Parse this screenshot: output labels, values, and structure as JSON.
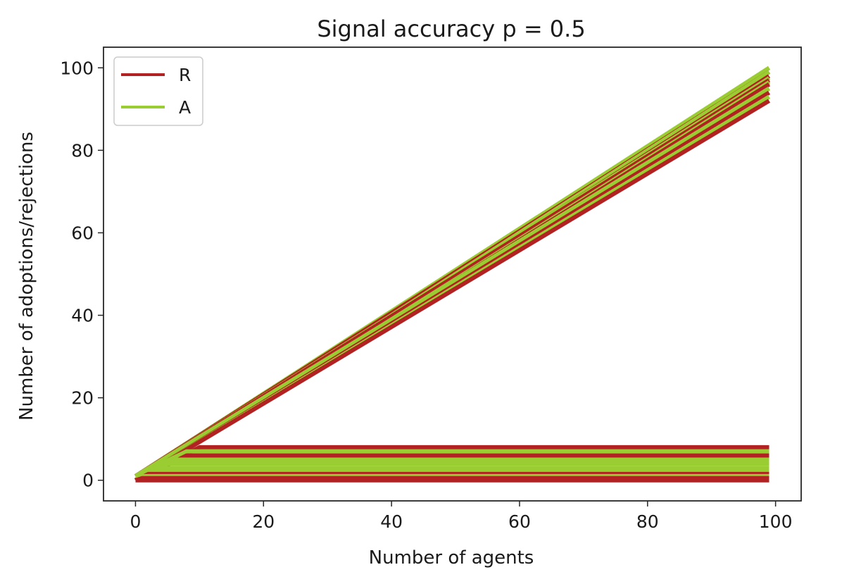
{
  "chart_data": {
    "type": "line",
    "title": "Signal accuracy p =  0.5",
    "xlabel": "Number of agents",
    "ylabel": "Number of adoptions/rejections",
    "xlim": [
      -5,
      104
    ],
    "ylim": [
      -5,
      105
    ],
    "xticks": [
      0,
      20,
      40,
      60,
      80,
      100
    ],
    "yticks": [
      0,
      20,
      40,
      60,
      80,
      100
    ],
    "grid": false,
    "legend_position": "top-left",
    "series": [
      {
        "name": "R",
        "color": "#b22222"
      },
      {
        "name": "A",
        "color": "#9acd32"
      }
    ],
    "lines": [
      {
        "series": "A",
        "x": [
          0,
          99
        ],
        "y": [
          1,
          100
        ]
      },
      {
        "series": "R",
        "x": [
          0,
          99
        ],
        "y": [
          1,
          99
        ]
      },
      {
        "series": "A",
        "x": [
          0,
          99
        ],
        "y": [
          0,
          99
        ]
      },
      {
        "series": "R",
        "x": [
          0,
          99
        ],
        "y": [
          0,
          98
        ]
      },
      {
        "series": "A",
        "x": [
          0,
          99
        ],
        "y": [
          1,
          97.5
        ]
      },
      {
        "series": "R",
        "x": [
          0,
          99
        ],
        "y": [
          1,
          97
        ]
      },
      {
        "series": "A",
        "x": [
          0,
          99
        ],
        "y": [
          0,
          96.5
        ]
      },
      {
        "series": "R",
        "x": [
          0,
          99
        ],
        "y": [
          0,
          96
        ]
      },
      {
        "series": "A",
        "x": [
          0,
          99
        ],
        "y": [
          1,
          95
        ]
      },
      {
        "series": "R",
        "x": [
          0,
          99
        ],
        "y": [
          0,
          94
        ]
      },
      {
        "series": "A",
        "x": [
          0,
          99
        ],
        "y": [
          0,
          93
        ]
      },
      {
        "series": "R",
        "x": [
          0,
          99
        ],
        "y": [
          0,
          92
        ]
      },
      {
        "series": "R",
        "x": [
          0,
          10,
          18,
          24,
          99
        ],
        "y": [
          0,
          8,
          8,
          8,
          8
        ]
      },
      {
        "series": "A",
        "x": [
          0,
          8,
          14,
          99
        ],
        "y": [
          1,
          7,
          7,
          7
        ]
      },
      {
        "series": "R",
        "x": [
          0,
          8,
          12,
          99
        ],
        "y": [
          0,
          6,
          6,
          6
        ]
      },
      {
        "series": "A",
        "x": [
          0,
          6,
          99
        ],
        "y": [
          0,
          5,
          5
        ]
      },
      {
        "series": "A",
        "x": [
          0,
          5,
          99
        ],
        "y": [
          1,
          4,
          4
        ]
      },
      {
        "series": "A",
        "x": [
          0,
          4,
          99
        ],
        "y": [
          0,
          3,
          3
        ]
      },
      {
        "series": "A",
        "x": [
          0,
          3,
          99
        ],
        "y": [
          1,
          2.5,
          2.5
        ]
      },
      {
        "series": "R",
        "x": [
          0,
          2,
          99
        ],
        "y": [
          0,
          1.5,
          1.5
        ]
      },
      {
        "series": "A",
        "x": [
          0,
          2,
          99
        ],
        "y": [
          1,
          1,
          1
        ]
      },
      {
        "series": "R",
        "x": [
          0,
          1,
          99
        ],
        "y": [
          0,
          0.5,
          0.5
        ]
      },
      {
        "series": "R",
        "x": [
          0,
          99
        ],
        "y": [
          0,
          0
        ]
      }
    ]
  }
}
